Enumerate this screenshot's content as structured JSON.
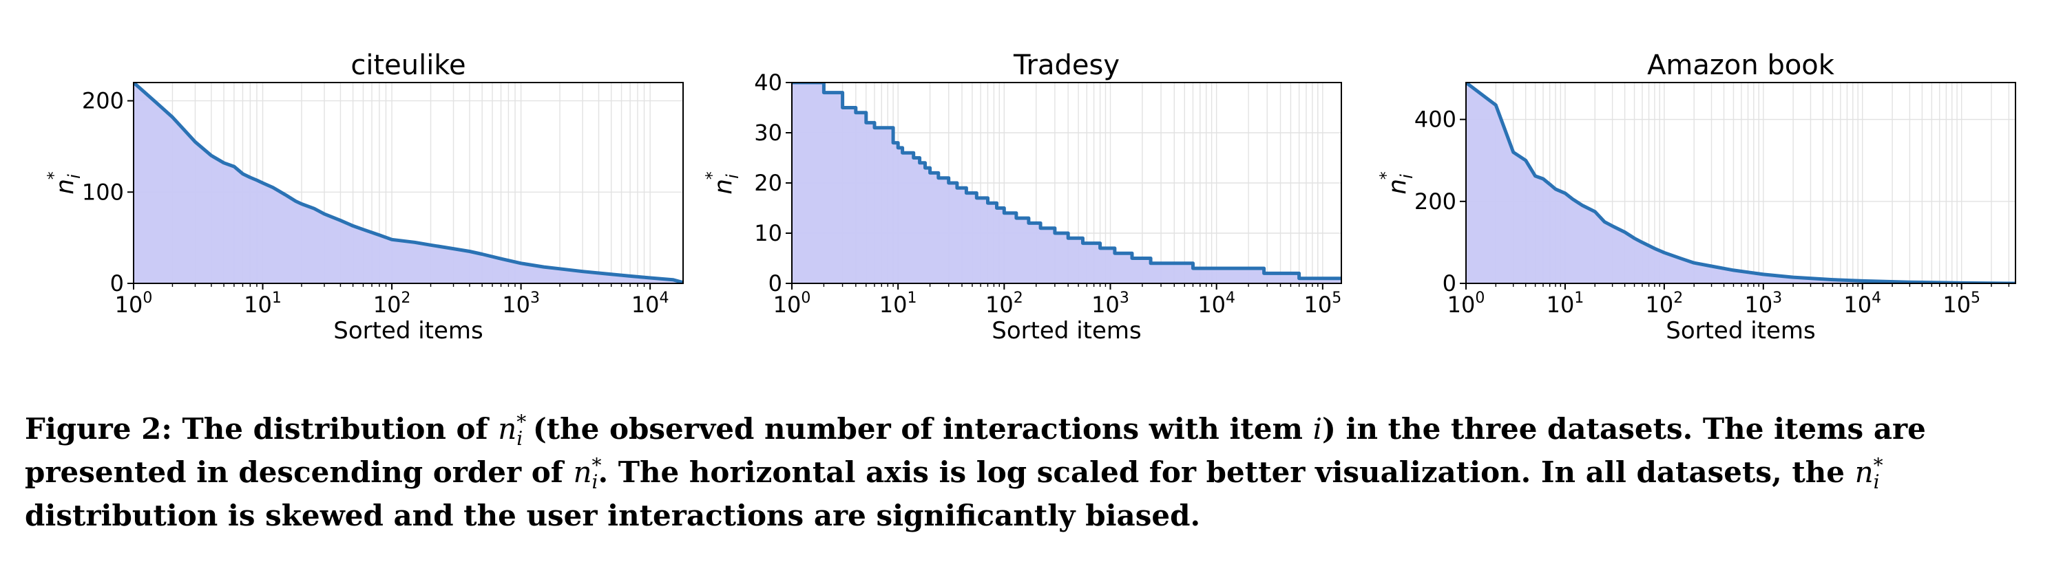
{
  "chart_data": [
    {
      "type": "area",
      "title": "citeulike",
      "xlabel": "Sorted items",
      "ylabel": {
        "base": "n",
        "sub": "i",
        "sup": "*"
      },
      "xscale": "log",
      "xlim": [
        1,
        18000
      ],
      "ylim": [
        0,
        220
      ],
      "xticks": [
        {
          "base": "10",
          "exp": "0"
        },
        {
          "base": "10",
          "exp": "1"
        },
        {
          "base": "10",
          "exp": "2"
        },
        {
          "base": "10",
          "exp": "3"
        },
        {
          "base": "10",
          "exp": "4"
        }
      ],
      "yticks": [
        "0",
        "100",
        "200"
      ],
      "grid": true,
      "line_color": "#2a72b4",
      "fill_color": "#c8c8f6",
      "x": [
        1,
        1.5,
        2,
        3,
        4,
        5,
        6,
        7,
        8,
        9,
        10,
        12,
        15,
        18,
        20,
        25,
        30,
        40,
        50,
        60,
        80,
        100,
        150,
        200,
        300,
        400,
        500,
        700,
        1000,
        1500,
        2000,
        3000,
        5000,
        7000,
        10000,
        15000,
        18000
      ],
      "y": [
        220,
        198,
        182,
        155,
        140,
        132,
        128,
        120,
        116,
        113,
        110,
        105,
        97,
        90,
        87,
        82,
        76,
        69,
        63,
        59,
        53,
        48,
        45,
        42,
        38,
        35,
        32,
        27,
        22,
        18,
        16,
        13,
        10,
        8,
        6,
        4,
        1
      ]
    },
    {
      "type": "area",
      "title": "Tradesy",
      "xlabel": "Sorted items",
      "ylabel": {
        "base": "n",
        "sub": "i",
        "sup": "*"
      },
      "xscale": "log",
      "xlim": [
        1,
        150000
      ],
      "ylim": [
        0,
        40
      ],
      "xticks": [
        {
          "base": "10",
          "exp": "0"
        },
        {
          "base": "10",
          "exp": "1"
        },
        {
          "base": "10",
          "exp": "2"
        },
        {
          "base": "10",
          "exp": "3"
        },
        {
          "base": "10",
          "exp": "4"
        },
        {
          "base": "10",
          "exp": "5"
        }
      ],
      "yticks": [
        "0",
        "10",
        "20",
        "30",
        "40"
      ],
      "grid": true,
      "line_color": "#2a72b4",
      "fill_color": "#c8c8f6",
      "step": true,
      "x": [
        1,
        2,
        3,
        4,
        5,
        6,
        8,
        9,
        10,
        11,
        12,
        14,
        16,
        18,
        20,
        24,
        30,
        36,
        44,
        55,
        70,
        85,
        100,
        130,
        170,
        220,
        300,
        400,
        550,
        800,
        1100,
        1600,
        2400,
        3700,
        6000,
        10000,
        28000,
        60000,
        150000
      ],
      "y": [
        40,
        38,
        35,
        34,
        32,
        31,
        31,
        28,
        27,
        26,
        26,
        25,
        24,
        23,
        22,
        21,
        20,
        19,
        18,
        17,
        16,
        15,
        14,
        13,
        12,
        11,
        10,
        9,
        8,
        7,
        6,
        5,
        4,
        4,
        3,
        3,
        2,
        1,
        1
      ]
    },
    {
      "type": "area",
      "title": "Amazon book",
      "xlabel": "Sorted items",
      "ylabel": {
        "base": "n",
        "sub": "i",
        "sup": "*"
      },
      "xscale": "log",
      "xlim": [
        1,
        350000
      ],
      "ylim": [
        0,
        490
      ],
      "xticks": [
        {
          "base": "10",
          "exp": "0"
        },
        {
          "base": "10",
          "exp": "1"
        },
        {
          "base": "10",
          "exp": "2"
        },
        {
          "base": "10",
          "exp": "3"
        },
        {
          "base": "10",
          "exp": "4"
        },
        {
          "base": "10",
          "exp": "5"
        }
      ],
      "yticks": [
        "0",
        "200",
        "400"
      ],
      "grid": true,
      "line_color": "#2a72b4",
      "fill_color": "#c8c8f6",
      "x": [
        1,
        2,
        3,
        4,
        5,
        6,
        7,
        8,
        10,
        12,
        15,
        20,
        25,
        30,
        40,
        50,
        60,
        80,
        100,
        150,
        200,
        300,
        500,
        1000,
        2000,
        5000,
        10000,
        30000,
        100000,
        350000
      ],
      "y": [
        490,
        435,
        320,
        300,
        262,
        255,
        242,
        230,
        220,
        205,
        190,
        175,
        150,
        140,
        125,
        110,
        100,
        85,
        75,
        60,
        50,
        42,
        32,
        22,
        15,
        9,
        6,
        3,
        1,
        0
      ]
    }
  ],
  "caption": {
    "prefix": "Figure 2: The distribution of ",
    "symbol": {
      "base": "n",
      "sub": "i",
      "sup": "*"
    },
    "part1": " (the observed number of interactions with item ",
    "item_var": "i",
    "part2": ") in the three datasets. The items are presented in descending order of ",
    "part3": ". The horizontal axis is log scaled for better visualization. In all datasets, the ",
    "part4": " distribution is skewed and the user interactions are significantly biased."
  }
}
